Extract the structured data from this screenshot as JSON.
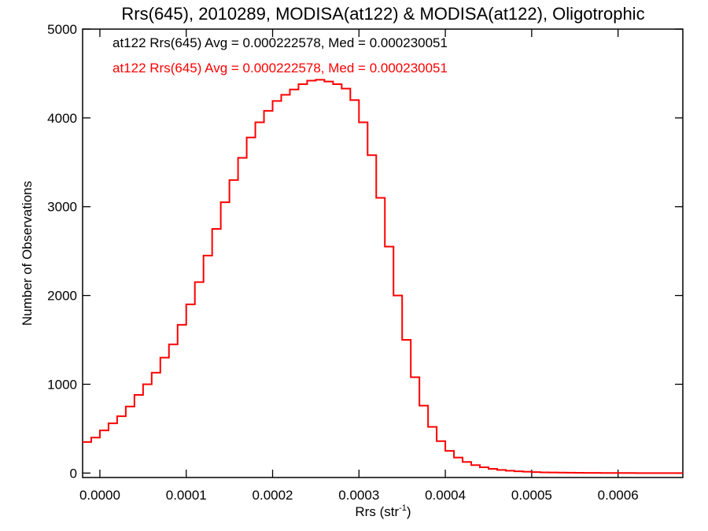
{
  "chart_data": {
    "type": "histogram",
    "title": "Rrs(645), 2010289, MODISA(at122) & MODISA(at122), Oligotrophic",
    "xlabel": "Rrs (str",
    "xlabel_sup": "-1",
    "xlabel_suffix": ")",
    "ylabel": "Number of Observations",
    "xlim": [
      -2e-05,
      0.000675
    ],
    "ylim": [
      -50,
      5000
    ],
    "xticks": [
      {
        "value": 0.0,
        "label": "0.0000"
      },
      {
        "value": 0.0001,
        "label": "0.0001"
      },
      {
        "value": 0.0002,
        "label": "0.0002"
      },
      {
        "value": 0.0003,
        "label": "0.0003"
      },
      {
        "value": 0.0004,
        "label": "0.0004"
      },
      {
        "value": 0.0005,
        "label": "0.0005"
      },
      {
        "value": 0.0006,
        "label": "0.0006"
      }
    ],
    "yticks": [
      {
        "value": 0,
        "label": "0"
      },
      {
        "value": 1000,
        "label": "1000"
      },
      {
        "value": 2000,
        "label": "2000"
      },
      {
        "value": 3000,
        "label": "3000"
      },
      {
        "value": 4000,
        "label": "4000"
      },
      {
        "value": 5000,
        "label": "5000"
      }
    ],
    "annotations": [
      {
        "text": "at122 Rrs(645) Avg = 0.000222578, Med = 0.000230051",
        "color": "#000000"
      },
      {
        "text": "at122 Rrs(645) Avg = 0.000222578, Med = 0.000230051",
        "color": "#ff0000"
      }
    ],
    "series": [
      {
        "color": "#ff0000",
        "points": [
          [
            -2e-05,
            350
          ],
          [
            -1e-05,
            400
          ],
          [
            0.0,
            480
          ],
          [
            1e-05,
            560
          ],
          [
            2e-05,
            640
          ],
          [
            3e-05,
            750
          ],
          [
            4e-05,
            880
          ],
          [
            5e-05,
            1000
          ],
          [
            6e-05,
            1130
          ],
          [
            7e-05,
            1300
          ],
          [
            8e-05,
            1450
          ],
          [
            9e-05,
            1670
          ],
          [
            0.0001,
            1900
          ],
          [
            0.00011,
            2150
          ],
          [
            0.00012,
            2450
          ],
          [
            0.00013,
            2750
          ],
          [
            0.00014,
            3050
          ],
          [
            0.00015,
            3300
          ],
          [
            0.00016,
            3550
          ],
          [
            0.00017,
            3780
          ],
          [
            0.00018,
            3950
          ],
          [
            0.00019,
            4080
          ],
          [
            0.0002,
            4190
          ],
          [
            0.00021,
            4260
          ],
          [
            0.00022,
            4320
          ],
          [
            0.00023,
            4380
          ],
          [
            0.00024,
            4420
          ],
          [
            0.00025,
            4430
          ],
          [
            0.00026,
            4410
          ],
          [
            0.00027,
            4380
          ],
          [
            0.00028,
            4330
          ],
          [
            0.00029,
            4200
          ],
          [
            0.0003,
            3950
          ],
          [
            0.00031,
            3580
          ],
          [
            0.00032,
            3100
          ],
          [
            0.00033,
            2550
          ],
          [
            0.00034,
            2000
          ],
          [
            0.00035,
            1500
          ],
          [
            0.00036,
            1080
          ],
          [
            0.00037,
            760
          ],
          [
            0.00038,
            520
          ],
          [
            0.00039,
            360
          ],
          [
            0.0004,
            250
          ],
          [
            0.00041,
            175
          ],
          [
            0.00042,
            125
          ],
          [
            0.00043,
            90
          ],
          [
            0.00044,
            65
          ],
          [
            0.00045,
            48
          ],
          [
            0.00046,
            35
          ],
          [
            0.00047,
            26
          ],
          [
            0.00048,
            20
          ],
          [
            0.00049,
            15
          ],
          [
            0.0005,
            11
          ],
          [
            0.00051,
            8
          ],
          [
            0.00052,
            6
          ],
          [
            0.00053,
            5
          ],
          [
            0.00054,
            4
          ],
          [
            0.00055,
            3
          ],
          [
            0.00056,
            2
          ],
          [
            0.00057,
            2
          ],
          [
            0.00058,
            1
          ],
          [
            0.00059,
            1
          ],
          [
            0.0006,
            1
          ],
          [
            0.00061,
            1
          ],
          [
            0.00062,
            0
          ],
          [
            0.00063,
            0
          ],
          [
            0.00064,
            0
          ],
          [
            0.00065,
            0
          ],
          [
            0.00066,
            0
          ],
          [
            0.00067,
            0
          ],
          [
            0.000675,
            0
          ]
        ]
      }
    ]
  }
}
